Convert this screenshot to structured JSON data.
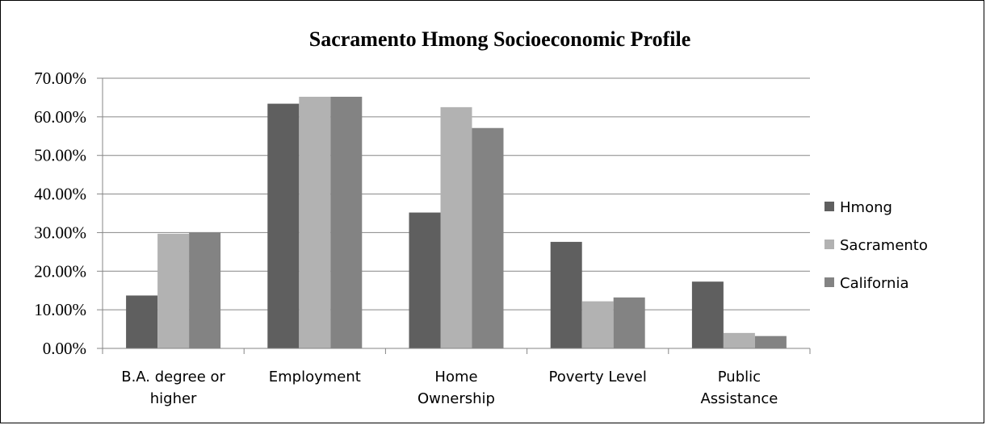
{
  "chart_data": {
    "type": "bar",
    "title": "Sacramento Hmong Socioeconomic Profile",
    "xlabel": "",
    "ylabel": "",
    "categories": [
      [
        "B.A. degree or",
        "higher"
      ],
      [
        "Employment"
      ],
      [
        "Home",
        "Ownership"
      ],
      [
        "Poverty Level"
      ],
      [
        "Public",
        "Assistance"
      ]
    ],
    "series": [
      {
        "name": "Hmong",
        "color": "#5f5f5f",
        "values": [
          13.7,
          63.4,
          35.2,
          27.6,
          17.3
        ]
      },
      {
        "name": "Sacramento",
        "color": "#b2b2b2",
        "values": [
          29.7,
          65.2,
          62.5,
          12.2,
          4.0
        ]
      },
      {
        "name": "California",
        "color": "#838383",
        "values": [
          30.1,
          65.2,
          57.1,
          13.2,
          3.2
        ]
      }
    ],
    "ylim": [
      0,
      70
    ],
    "yticks": [
      "0.00%",
      "10.00%",
      "20.00%",
      "30.00%",
      "40.00%",
      "50.00%",
      "60.00%",
      "70.00%"
    ],
    "grid": true,
    "legend_position": "right"
  }
}
